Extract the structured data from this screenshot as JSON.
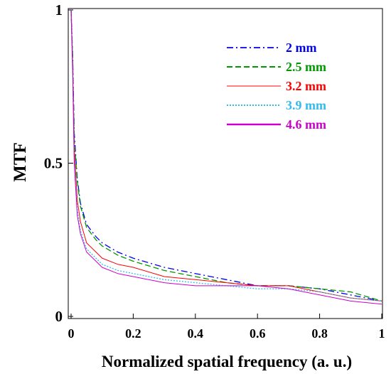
{
  "chart_data": {
    "type": "line",
    "title": "",
    "xlabel": "Normalized spatial frequency (a. u.)",
    "ylabel": "MTF",
    "xlim": [
      0,
      1
    ],
    "ylim": [
      0,
      1
    ],
    "x_ticks": [
      "0",
      "0.2",
      "0.4",
      "0.6",
      "0.8",
      "1"
    ],
    "y_ticks": [
      "0",
      "0.5",
      "1"
    ],
    "grid": false,
    "legend_position": "top-right",
    "x": [
      0,
      0.005,
      0.01,
      0.02,
      0.03,
      0.05,
      0.08,
      0.1,
      0.15,
      0.2,
      0.3,
      0.4,
      0.5,
      0.6,
      0.7,
      0.8,
      0.9,
      1.0
    ],
    "series": [
      {
        "name": "2 mm",
        "color": "#0000ee",
        "dash": "dash-dot",
        "values": [
          1.0,
          0.85,
          0.6,
          0.45,
          0.37,
          0.3,
          0.26,
          0.24,
          0.21,
          0.19,
          0.16,
          0.14,
          0.12,
          0.1,
          0.1,
          0.09,
          0.07,
          0.05
        ]
      },
      {
        "name": "2.5 mm",
        "color": "#009900",
        "dash": "dashed",
        "values": [
          1.0,
          0.84,
          0.58,
          0.44,
          0.36,
          0.29,
          0.25,
          0.23,
          0.2,
          0.18,
          0.15,
          0.13,
          0.11,
          0.1,
          0.1,
          0.09,
          0.08,
          0.05
        ]
      },
      {
        "name": "3.2 mm",
        "color": "#ff0000",
        "dash": "solid",
        "values": [
          1.0,
          0.82,
          0.55,
          0.38,
          0.31,
          0.24,
          0.21,
          0.19,
          0.17,
          0.16,
          0.13,
          0.12,
          0.11,
          0.1,
          0.1,
          0.08,
          0.06,
          0.05
        ]
      },
      {
        "name": "3.9 mm",
        "color": "#33bbee",
        "dash": "dotted",
        "values": [
          1.0,
          0.8,
          0.52,
          0.35,
          0.28,
          0.22,
          0.19,
          0.17,
          0.15,
          0.14,
          0.12,
          0.11,
          0.1,
          0.09,
          0.09,
          0.08,
          0.06,
          0.05
        ]
      },
      {
        "name": "4.6 mm",
        "color": "#cc00cc",
        "dash": "solid-thick",
        "values": [
          1.0,
          0.8,
          0.5,
          0.33,
          0.27,
          0.21,
          0.18,
          0.16,
          0.14,
          0.13,
          0.11,
          0.1,
          0.1,
          0.1,
          0.09,
          0.07,
          0.05,
          0.04
        ]
      }
    ]
  }
}
